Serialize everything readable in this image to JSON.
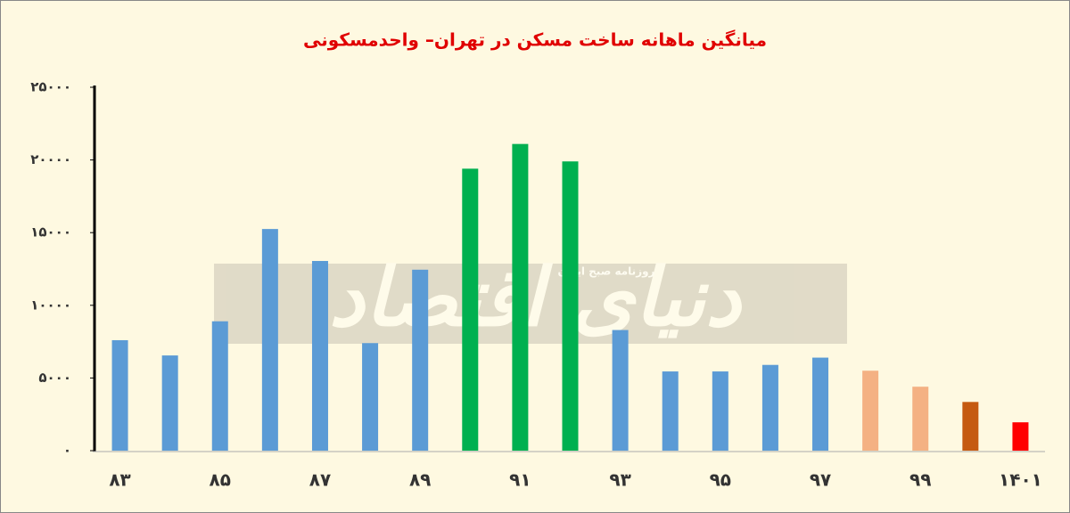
{
  "chart_data": {
    "type": "bar",
    "title": "میانگین ماهانه ساخت مسکن در تهران– واحدمسکونی",
    "watermark": "دنیای اقتصاد",
    "watermark_subtitle": "روزنامه صبح ایران",
    "categories": [
      "۸۳",
      null,
      "۸۵",
      null,
      "۸۷",
      null,
      "۸۹",
      null,
      "۹۱",
      null,
      "۹۳",
      null,
      "۹۵",
      null,
      "۹۷",
      null,
      "۹۹",
      null,
      "۱۴۰۱"
    ],
    "values": [
      7600,
      6550,
      8900,
      15250,
      13050,
      7400,
      12450,
      19400,
      21100,
      19900,
      8300,
      5450,
      5450,
      5900,
      6400,
      5500,
      4400,
      3350,
      1950
    ],
    "colors": [
      "#5b9bd5",
      "#5b9bd5",
      "#5b9bd5",
      "#5b9bd5",
      "#5b9bd5",
      "#5b9bd5",
      "#5b9bd5",
      "#00b050",
      "#00b050",
      "#00b050",
      "#5b9bd5",
      "#5b9bd5",
      "#5b9bd5",
      "#5b9bd5",
      "#5b9bd5",
      "#f4b183",
      "#f4b183",
      "#c55a11",
      "#ff0000"
    ],
    "ylim": [
      0,
      25000
    ],
    "yticks": [
      {
        "value": 0,
        "label": "۰"
      },
      {
        "value": 5000,
        "label": "۵۰۰۰"
      },
      {
        "value": 10000,
        "label": "۱۰۰۰۰"
      },
      {
        "value": 15000,
        "label": "۱۵۰۰۰"
      },
      {
        "value": 20000,
        "label": "۲۰۰۰۰"
      },
      {
        "value": 25000,
        "label": "۲۵۰۰۰"
      }
    ],
    "grid": false
  }
}
